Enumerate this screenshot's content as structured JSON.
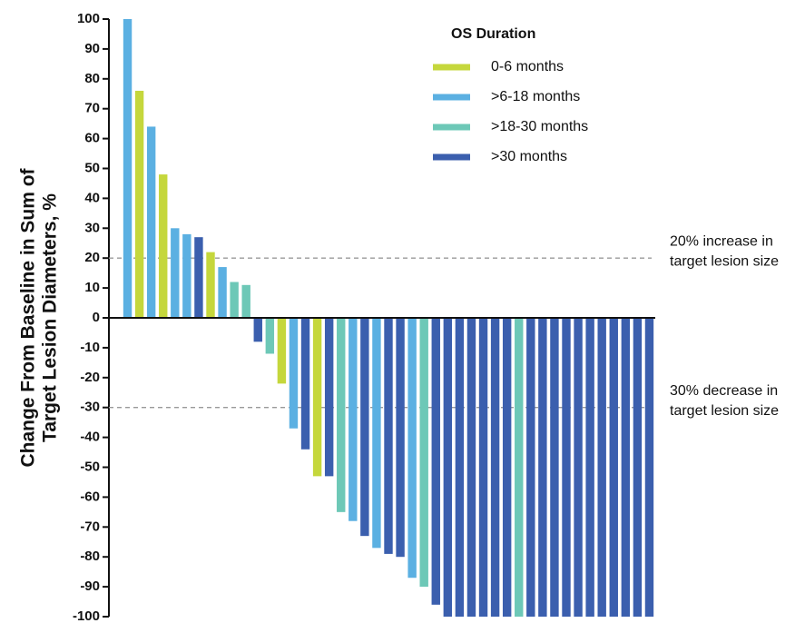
{
  "chart_data": {
    "type": "bar",
    "y_label": [
      "Change From Baseline in Sum of",
      "Target Lesion Diameters, %"
    ],
    "legend_title": "OS Duration",
    "categories": [
      null,
      null,
      null,
      null,
      null,
      null,
      null,
      null,
      null,
      null,
      null,
      null,
      null,
      null,
      null,
      null,
      null,
      null,
      null,
      null,
      null,
      null,
      null,
      null,
      null,
      null,
      null,
      null,
      null,
      null,
      null,
      null,
      null,
      null,
      null,
      null,
      null,
      null,
      null,
      null,
      null,
      null,
      null,
      null,
      null
    ],
    "series": [
      {
        "name": "0-6 months",
        "color": "#c5d73c",
        "values": [
          null,
          76,
          null,
          48,
          null,
          null,
          null,
          22,
          null,
          null,
          null,
          null,
          null,
          -22,
          null,
          null,
          -53,
          null,
          null,
          null,
          null,
          null,
          null,
          null,
          null,
          null,
          null,
          null,
          null,
          null,
          null,
          null,
          null,
          null,
          null,
          null,
          null,
          null,
          null,
          null,
          null,
          null,
          null,
          null,
          null
        ]
      },
      {
        "name": ">6-18 months",
        "color": "#5bb0e2",
        "values": [
          100,
          null,
          64,
          null,
          30,
          28,
          null,
          null,
          17,
          null,
          null,
          null,
          null,
          null,
          -37,
          null,
          null,
          null,
          null,
          -68,
          null,
          -77,
          null,
          null,
          -87,
          null,
          null,
          null,
          null,
          null,
          null,
          null,
          null,
          null,
          null,
          null,
          null,
          null,
          null,
          null,
          null,
          null,
          null,
          null,
          null
        ]
      },
      {
        "name": ">18-30 months",
        "color": "#6dc8b7",
        "values": [
          null,
          null,
          null,
          null,
          null,
          null,
          null,
          null,
          null,
          12,
          11,
          null,
          -12,
          null,
          null,
          null,
          null,
          null,
          -65,
          null,
          null,
          null,
          null,
          null,
          null,
          -90,
          null,
          null,
          null,
          null,
          null,
          null,
          null,
          -100,
          null,
          null,
          null,
          null,
          null,
          null,
          null,
          null,
          null,
          null,
          null
        ]
      },
      {
        "name": ">30 months",
        "color": "#3b5fae",
        "values": [
          null,
          null,
          null,
          null,
          null,
          null,
          27,
          null,
          null,
          null,
          null,
          -8,
          null,
          null,
          null,
          -44,
          null,
          -53,
          null,
          null,
          -73,
          null,
          -79,
          -80,
          null,
          null,
          -96,
          -100,
          -100,
          -100,
          -100,
          -100,
          -100,
          null,
          -100,
          -100,
          -100,
          -100,
          -100,
          -100,
          -100,
          -100,
          -100,
          -100,
          -100
        ]
      }
    ],
    "reference_lines": [
      {
        "value": 20,
        "label": [
          "20% increase in",
          "target lesion size"
        ]
      },
      {
        "value": -30,
        "label": [
          "30% decrease in",
          "target lesion size"
        ]
      }
    ],
    "ylim": [
      -100,
      100
    ],
    "yticks": [
      100,
      90,
      80,
      70,
      60,
      50,
      40,
      30,
      20,
      10,
      0,
      -10,
      -20,
      -30,
      -40,
      -50,
      -60,
      -70,
      -80,
      -90,
      -100
    ]
  }
}
